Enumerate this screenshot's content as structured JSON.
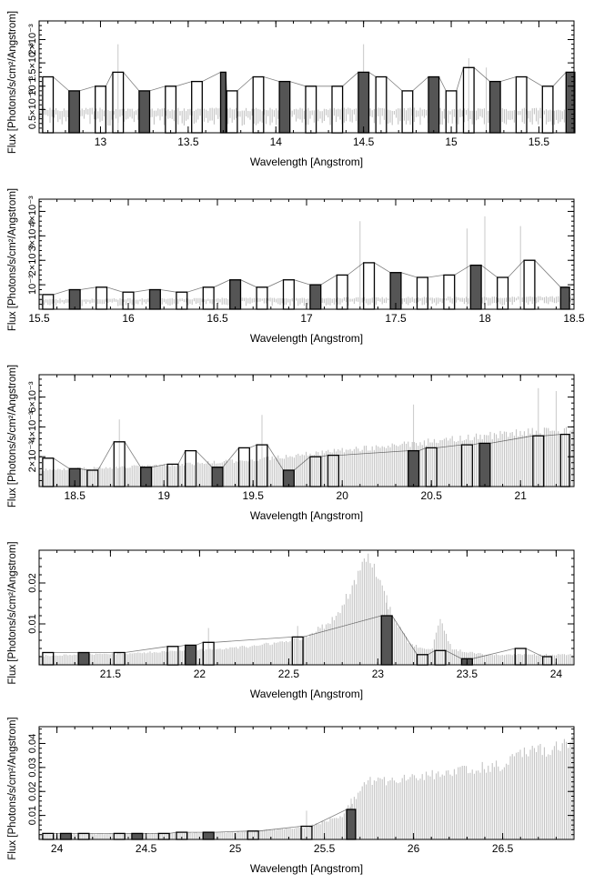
{
  "colors": {
    "axis": "#000000",
    "model": "#bdbdbd",
    "errorbar": "#c8c8c8",
    "data": "#000000",
    "fill": "#555555"
  },
  "chart_data": [
    {
      "type": "line",
      "xlabel": "Wavelength [Angstrom]",
      "ylabel": "Flux [Photons/s/cm²/Angstrom]",
      "xlim": [
        12.65,
        15.7
      ],
      "ylim": [
        0,
        0.0024
      ],
      "xticks": [
        13,
        13.5,
        14,
        14.5,
        15,
        15.5
      ],
      "xtick_labels": [
        "13",
        "13.5",
        "14",
        "14.5",
        "15",
        "15.5"
      ],
      "yticks": [
        0.0005,
        0.001,
        0.0015,
        0.002
      ],
      "ytick_labels": [
        "0.5×10⁻³",
        "10⁻³",
        "1.5×10⁻³",
        "2×10⁻³"
      ],
      "model_level": [
        [
          12.65,
          0.0005
        ],
        [
          15.7,
          0.0005
        ]
      ],
      "spikes": [
        [
          13.1,
          0.0019
        ],
        [
          14.5,
          0.0019
        ],
        [
          15.1,
          0.0016
        ],
        [
          15.2,
          0.0014
        ]
      ],
      "series": [
        {
          "name": "",
          "x": [
            12.7,
            12.85,
            13.0,
            13.1,
            13.25,
            13.4,
            13.55,
            13.7,
            13.75,
            13.9,
            14.05,
            14.2,
            14.35,
            14.5,
            14.6,
            14.75,
            14.9,
            15.0,
            15.1,
            15.25,
            15.4,
            15.55,
            15.68
          ],
          "values": [
            0.0012,
            0.0009,
            0.001,
            0.0013,
            0.0009,
            0.001,
            0.0011,
            0.0013,
            0.0009,
            0.0012,
            0.0011,
            0.001,
            0.001,
            0.0013,
            0.0012,
            0.0009,
            0.0012,
            0.0009,
            0.0014,
            0.0011,
            0.0012,
            0.001,
            0.0013
          ]
        }
      ]
    },
    {
      "type": "line",
      "xlabel": "Wavelength [Angstrom]",
      "ylabel": "Flux [Photons/s/cm²/Angstrom]",
      "xlim": [
        15.5,
        18.5
      ],
      "ylim": [
        0,
        0.0045
      ],
      "xticks": [
        15.5,
        16,
        16.5,
        17,
        17.5,
        18,
        18.5
      ],
      "xtick_labels": [
        "15.5",
        "16",
        "16.5",
        "17",
        "17.5",
        "18",
        "18.5"
      ],
      "yticks": [
        0.001,
        0.002,
        0.003,
        0.004
      ],
      "ytick_labels": [
        "10⁻³",
        "2×10⁻³",
        "3×10⁻³",
        "4×10⁻³"
      ],
      "model_level": [
        [
          15.5,
          0.0004
        ],
        [
          18.5,
          0.0005
        ]
      ],
      "spikes": [
        [
          17.3,
          0.0036
        ],
        [
          17.9,
          0.0033
        ],
        [
          18.0,
          0.0038
        ],
        [
          18.2,
          0.0034
        ]
      ],
      "series": [
        {
          "name": "",
          "x": [
            15.55,
            15.7,
            15.85,
            16.0,
            16.15,
            16.3,
            16.45,
            16.6,
            16.75,
            16.9,
            17.05,
            17.2,
            17.35,
            17.5,
            17.65,
            17.8,
            17.95,
            18.1,
            18.25,
            18.45
          ],
          "values": [
            0.0006,
            0.0008,
            0.0009,
            0.0007,
            0.0008,
            0.0007,
            0.0009,
            0.0012,
            0.0009,
            0.0012,
            0.001,
            0.0014,
            0.0019,
            0.0015,
            0.0013,
            0.0014,
            0.0018,
            0.0013,
            0.002,
            0.0009
          ]
        }
      ]
    },
    {
      "type": "line",
      "xlabel": "Wavelength [Angstrom]",
      "ylabel": "Flux [Photons/s/cm²/Angstrom]",
      "xlim": [
        18.3,
        21.3
      ],
      "ylim": [
        0,
        0.0075
      ],
      "xticks": [
        18.5,
        19,
        19.5,
        20,
        20.5,
        21
      ],
      "xtick_labels": [
        "18.5",
        "19",
        "19.5",
        "20",
        "20.5",
        "21"
      ],
      "yticks": [
        0.002,
        0.004,
        0.006
      ],
      "ytick_labels": [
        "2×10⁻³",
        "4×10⁻³",
        "6×10⁻³"
      ],
      "model_level": [
        [
          18.3,
          0.0011
        ],
        [
          19.0,
          0.0014
        ],
        [
          19.5,
          0.0018
        ],
        [
          20.0,
          0.0024
        ],
        [
          20.5,
          0.003
        ],
        [
          21.0,
          0.0036
        ],
        [
          21.3,
          0.0038
        ]
      ],
      "spikes": [
        [
          18.75,
          0.0045
        ],
        [
          19.55,
          0.0048
        ],
        [
          20.4,
          0.0055
        ],
        [
          21.1,
          0.0066
        ],
        [
          21.2,
          0.0064
        ]
      ],
      "series": [
        {
          "name": "",
          "x": [
            18.35,
            18.5,
            18.6,
            18.75,
            18.9,
            19.05,
            19.15,
            19.3,
            19.45,
            19.55,
            19.7,
            19.85,
            19.95,
            20.4,
            20.5,
            20.7,
            20.8,
            21.1,
            21.25
          ],
          "values": [
            0.0019,
            0.0012,
            0.0011,
            0.003,
            0.0013,
            0.0015,
            0.0024,
            0.0013,
            0.0026,
            0.0028,
            0.0011,
            0.002,
            0.0021,
            0.0024,
            0.0026,
            0.0028,
            0.0029,
            0.0034,
            0.0035
          ]
        }
      ]
    },
    {
      "type": "line",
      "xlabel": "Wavelength [Angstrom]",
      "ylabel": "Flux [Photons/s/cm²/Angstrom]",
      "xlim": [
        21.1,
        24.1
      ],
      "ylim": [
        0,
        0.028
      ],
      "xticks": [
        21.5,
        22,
        22.5,
        23,
        23.5,
        24
      ],
      "xtick_labels": [
        "21.5",
        "22",
        "22.5",
        "23",
        "23.5",
        "24"
      ],
      "yticks": [
        0.01,
        0.02
      ],
      "ytick_labels": [
        "0.01",
        "0.02"
      ],
      "model_level": [
        [
          21.1,
          0.0022
        ],
        [
          21.6,
          0.0028
        ],
        [
          22.0,
          0.0036
        ],
        [
          22.3,
          0.0045
        ],
        [
          22.6,
          0.0068
        ],
        [
          22.75,
          0.011
        ],
        [
          22.85,
          0.018
        ],
        [
          22.93,
          0.027
        ],
        [
          23.0,
          0.022
        ],
        [
          23.08,
          0.012
        ],
        [
          23.18,
          0.005
        ],
        [
          23.3,
          0.0035
        ],
        [
          23.35,
          0.0105
        ],
        [
          23.42,
          0.0038
        ],
        [
          23.6,
          0.0025
        ],
        [
          24.1,
          0.0025
        ]
      ],
      "spikes": [
        [
          22.05,
          0.009
        ],
        [
          22.55,
          0.0095
        ],
        [
          23.05,
          0.017
        ],
        [
          23.35,
          0.011
        ]
      ],
      "series": [
        {
          "name": "",
          "x": [
            21.15,
            21.35,
            21.55,
            21.85,
            21.95,
            22.05,
            22.55,
            23.05,
            23.25,
            23.35,
            23.5,
            23.8,
            23.95
          ],
          "values": [
            0.003,
            0.003,
            0.003,
            0.0045,
            0.0048,
            0.0055,
            0.0068,
            0.012,
            0.0025,
            0.0035,
            0.0015,
            0.004,
            0.002
          ]
        }
      ]
    },
    {
      "type": "line",
      "xlabel": "Wavelength [Angstrom]",
      "ylabel": "Flux [Photons/s/cm²/Angstrom]",
      "xlim": [
        23.9,
        26.9
      ],
      "ylim": [
        0,
        0.047
      ],
      "xticks": [
        24,
        24.5,
        25,
        25.5,
        26,
        26.5
      ],
      "xtick_labels": [
        "24",
        "24.5",
        "25",
        "25.5",
        "26",
        "26.5"
      ],
      "yticks": [
        0.01,
        0.02,
        0.03,
        0.04
      ],
      "ytick_labels": [
        "0.01",
        "0.02",
        "0.03",
        "0.04"
      ],
      "model_level": [
        [
          23.9,
          0.002
        ],
        [
          25.0,
          0.003
        ],
        [
          25.4,
          0.005
        ],
        [
          25.6,
          0.01
        ],
        [
          25.72,
          0.022
        ],
        [
          25.75,
          0.025
        ],
        [
          25.8,
          0.024
        ],
        [
          26.5,
          0.031
        ],
        [
          26.55,
          0.035
        ],
        [
          26.8,
          0.038
        ],
        [
          26.9,
          0.043
        ]
      ],
      "spikes": [
        [
          25.4,
          0.012
        ],
        [
          25.65,
          0.017
        ]
      ],
      "series": [
        {
          "name": "",
          "x": [
            23.95,
            24.05,
            24.15,
            24.35,
            24.45,
            24.6,
            24.7,
            24.85,
            25.1,
            25.4,
            25.65
          ],
          "values": [
            0.0025,
            0.0025,
            0.0025,
            0.0025,
            0.0025,
            0.0025,
            0.003,
            0.003,
            0.0035,
            0.0055,
            0.0125
          ]
        }
      ]
    }
  ]
}
